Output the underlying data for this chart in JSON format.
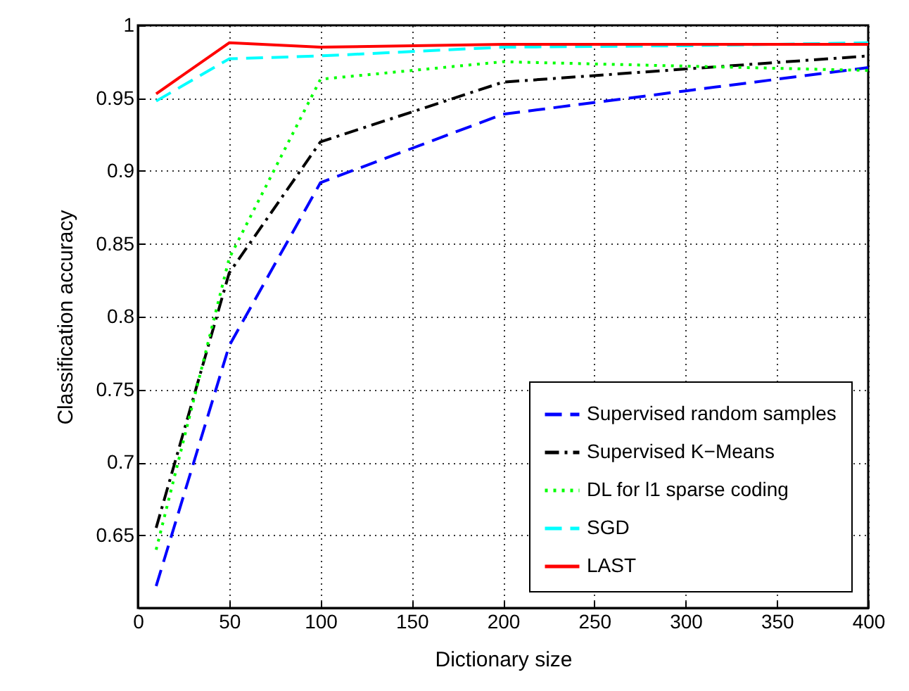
{
  "chart_data": {
    "type": "line",
    "xlabel": "Dictionary size",
    "ylabel": "Classification accuracy",
    "x": [
      10,
      50,
      100,
      200,
      300,
      400
    ],
    "series": [
      {
        "name": "Supervised random samples",
        "color": "#0000ff",
        "line_style": "dashed",
        "values": [
          0.615,
          0.78,
          0.892,
          0.939,
          0.955,
          0.971
        ]
      },
      {
        "name": "Supervised K−Means",
        "color": "#000000",
        "line_style": "dashdot",
        "values": [
          0.655,
          0.83,
          0.92,
          0.961,
          0.97,
          0.979
        ]
      },
      {
        "name": "DL for l1 sparse coding",
        "color": "#00ff00",
        "line_style": "dotted",
        "values": [
          0.64,
          0.84,
          0.963,
          0.975,
          0.972,
          0.969
        ]
      },
      {
        "name": "SGD",
        "color": "#00ffff",
        "line_style": "dashed",
        "values": [
          0.948,
          0.977,
          0.979,
          0.985,
          0.986,
          0.988
        ]
      },
      {
        "name": "LAST",
        "color": "#ff0000",
        "line_style": "solid",
        "values": [
          0.953,
          0.988,
          0.985,
          0.987,
          0.987,
          0.987
        ]
      }
    ],
    "xlim": [
      0,
      400
    ],
    "xticks": [
      0,
      50,
      100,
      150,
      200,
      250,
      300,
      350,
      400
    ],
    "ylim": [
      0.6,
      1
    ],
    "yticks": [
      {
        "value": 0.6,
        "label": null
      },
      0.65,
      0.7,
      0.75,
      0.8,
      0.85,
      0.9,
      0.95,
      1
    ],
    "grid": true,
    "legend": "bottom right",
    "marker": "none"
  }
}
